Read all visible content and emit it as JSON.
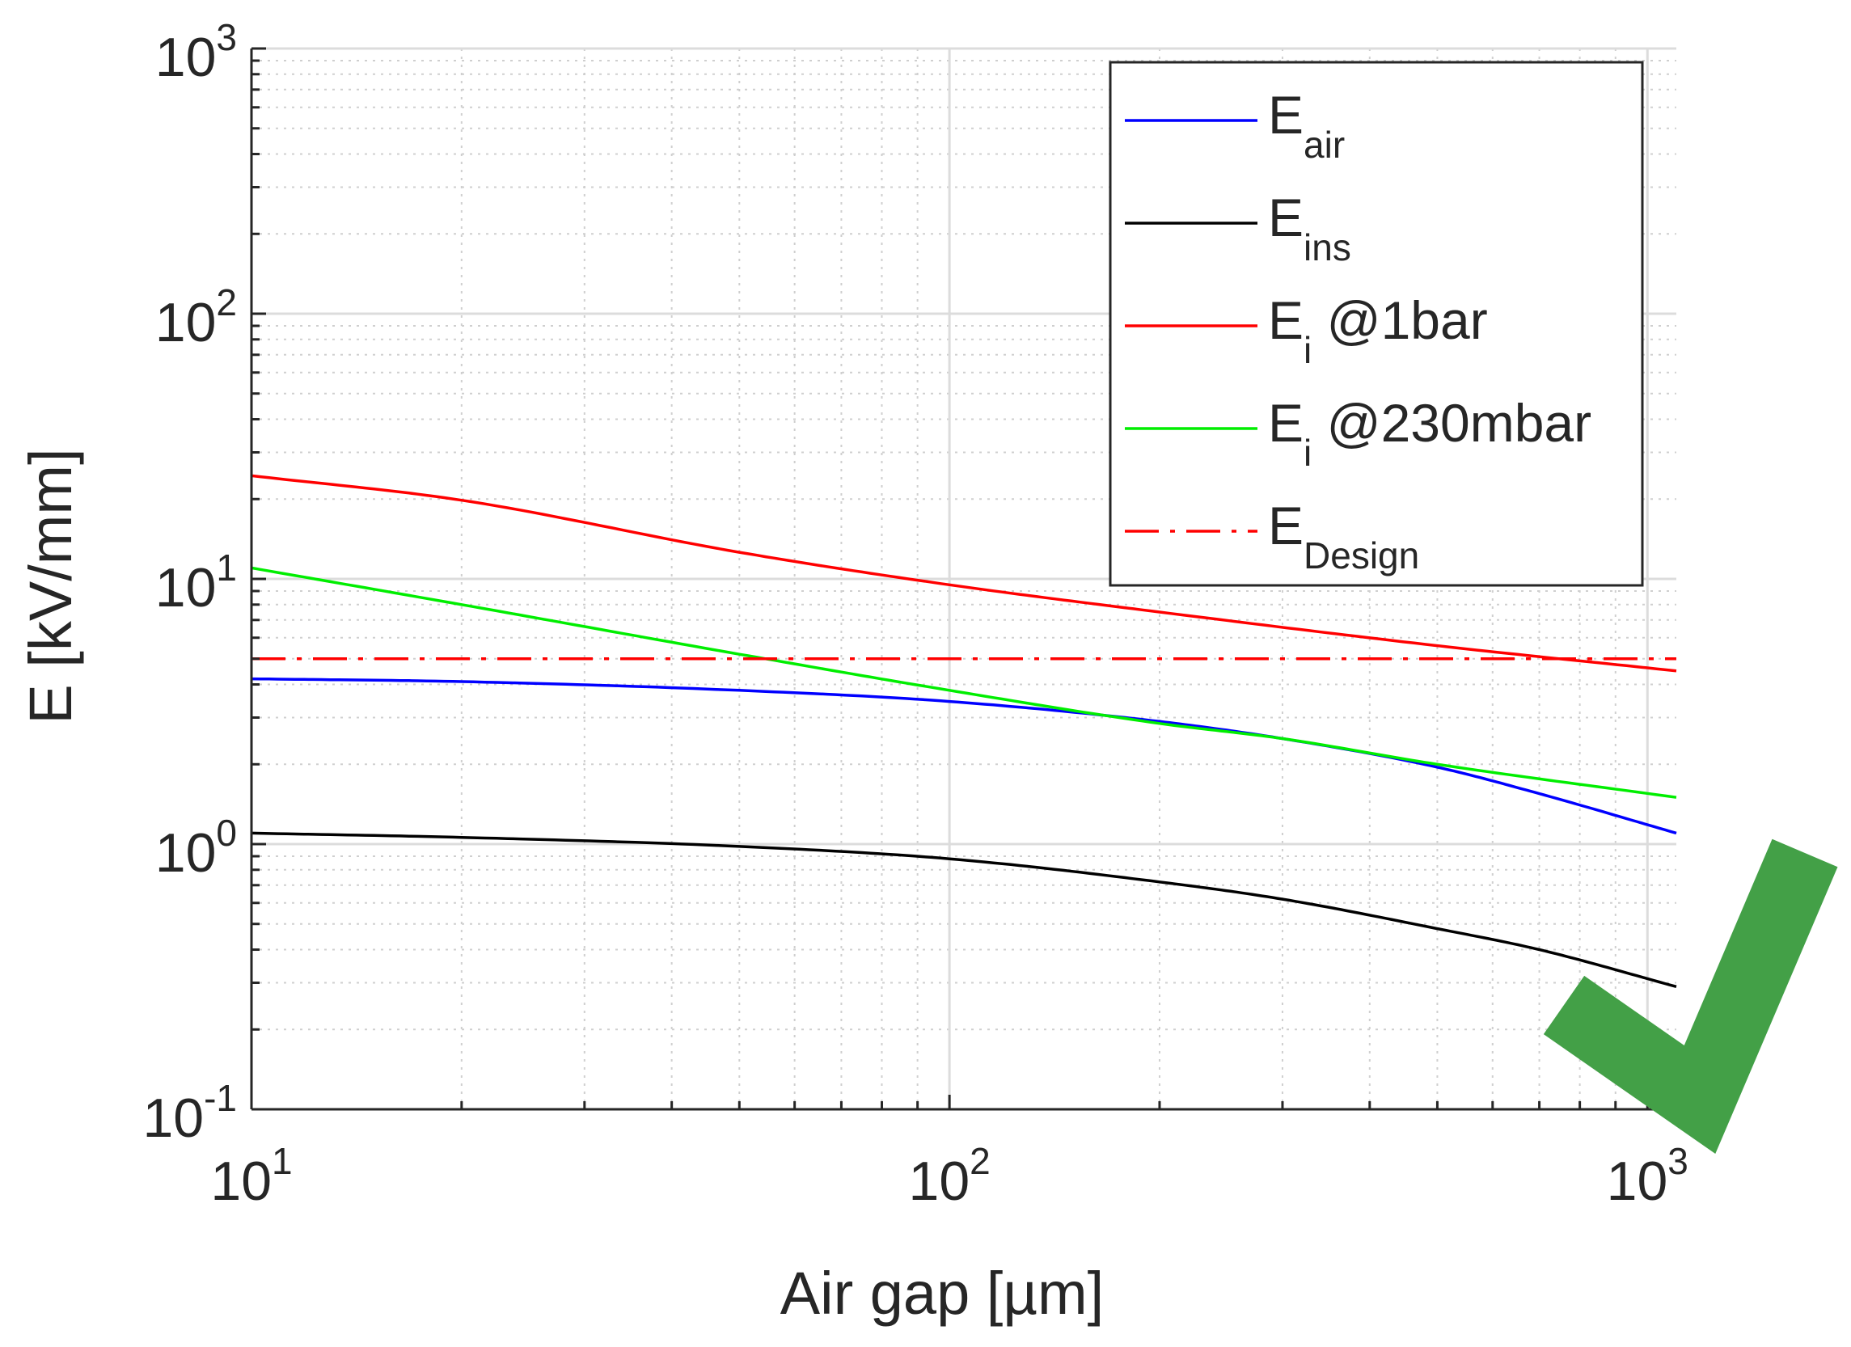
{
  "chart_data": {
    "type": "line",
    "scale": {
      "x": "log",
      "y": "log"
    },
    "xlabel": "Air gap [µm]",
    "ylabel": "E [kV/mm]",
    "xlim": [
      10,
      1100
    ],
    "ylim": [
      0.1,
      1000
    ],
    "grid": true,
    "legend_position": "top-right",
    "x_ticks": [
      {
        "value": 10,
        "base": "10",
        "exp": "1"
      },
      {
        "value": 100,
        "base": "10",
        "exp": "2"
      },
      {
        "value": 1000,
        "base": "10",
        "exp": "3"
      }
    ],
    "y_ticks": [
      {
        "value": 0.1,
        "base": "10",
        "exp": "-1"
      },
      {
        "value": 1,
        "base": "10",
        "exp": "0"
      },
      {
        "value": 10,
        "base": "10",
        "exp": "1"
      },
      {
        "value": 100,
        "base": "10",
        "exp": "2"
      },
      {
        "value": 1000,
        "base": "10",
        "exp": "3"
      }
    ],
    "series": [
      {
        "name": "E_air",
        "label_main": "E",
        "label_sub": "air",
        "color": "#0000ff",
        "dash": "solid",
        "x": [
          10,
          20,
          50,
          100,
          200,
          300,
          500,
          700,
          1100
        ],
        "y": [
          4.2,
          4.1,
          3.8,
          3.45,
          2.9,
          2.5,
          1.95,
          1.55,
          1.1
        ]
      },
      {
        "name": "E_ins",
        "label_main": "E",
        "label_sub": "ins",
        "color": "#000000",
        "dash": "solid",
        "x": [
          10,
          20,
          50,
          100,
          200,
          300,
          500,
          700,
          1100
        ],
        "y": [
          1.1,
          1.06,
          0.98,
          0.88,
          0.72,
          0.62,
          0.48,
          0.4,
          0.29
        ]
      },
      {
        "name": "E_i @1bar",
        "label_main": "E",
        "label_sub": "i",
        "label_rest": " @1bar",
        "color": "#ff0000",
        "dash": "solid",
        "x": [
          10,
          20,
          50,
          100,
          200,
          500,
          1100
        ],
        "y": [
          24.5,
          19.8,
          12.6,
          9.5,
          7.5,
          5.6,
          4.5
        ]
      },
      {
        "name": "E_i @230mbar",
        "label_main": "E",
        "label_sub": "i",
        "label_rest": " @230mbar",
        "color": "#00ee00",
        "dash": "solid",
        "x": [
          10,
          20,
          50,
          100,
          200,
          300,
          500,
          1100
        ],
        "y": [
          11,
          8.0,
          5.2,
          3.8,
          2.85,
          2.5,
          2.0,
          1.5
        ]
      },
      {
        "name": "E_Design",
        "label_main": "E",
        "label_sub": "Design",
        "color": "#ff0000",
        "dash": "dashdot",
        "x": [
          10,
          1100
        ],
        "y": [
          5,
          5
        ]
      }
    ],
    "annotations": [
      {
        "type": "checkmark-icon",
        "color": "#43a047",
        "meaning": "design criterion satisfied"
      }
    ]
  }
}
